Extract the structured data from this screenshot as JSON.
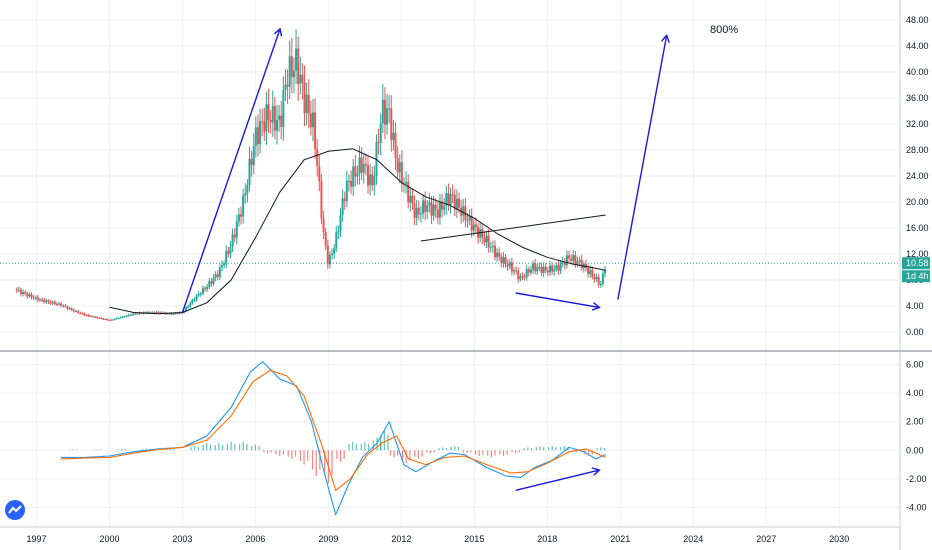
{
  "chart_data": [
    {
      "type": "candlestick",
      "yticks": [
        "48.00",
        "44.00",
        "40.00",
        "36.00",
        "32.00",
        "28.00",
        "24.00",
        "20.00",
        "16.00",
        "12.00",
        "8.00",
        "4.00",
        "0.00"
      ],
      "ylim": [
        0,
        48
      ],
      "xticks": [
        "1997",
        "2000",
        "2003",
        "2006",
        "2009",
        "2012",
        "2015",
        "2018",
        "2021",
        "2024",
        "2027",
        "2030"
      ],
      "xlim": [
        1995.5,
        2032.5
      ],
      "last_price_label": "10.58",
      "last_price": 10.58,
      "countdown_label": "1d 4h",
      "up_color": "#26a69a",
      "down_color": "#ef5350",
      "annotation_text": "800%",
      "closes": [
        {
          "t": 1996.1,
          "v": 6.6
        },
        {
          "t": 1996.5,
          "v": 5.9
        },
        {
          "t": 1997.0,
          "v": 5.1
        },
        {
          "t": 1997.5,
          "v": 4.6
        },
        {
          "t": 1998.0,
          "v": 4.2
        },
        {
          "t": 1998.5,
          "v": 3.3
        },
        {
          "t": 1999.0,
          "v": 2.6
        },
        {
          "t": 1999.5,
          "v": 2.2
        },
        {
          "t": 2000.0,
          "v": 1.8
        },
        {
          "t": 2000.5,
          "v": 2.3
        },
        {
          "t": 2001.0,
          "v": 2.8
        },
        {
          "t": 2001.5,
          "v": 3.0
        },
        {
          "t": 2002.0,
          "v": 3.0
        },
        {
          "t": 2002.5,
          "v": 2.8
        },
        {
          "t": 2003.0,
          "v": 3.0
        },
        {
          "t": 2003.5,
          "v": 5.2
        },
        {
          "t": 2004.0,
          "v": 7.0
        },
        {
          "t": 2004.5,
          "v": 9.2
        },
        {
          "t": 2005.0,
          "v": 13.5
        },
        {
          "t": 2005.5,
          "v": 20.0
        },
        {
          "t": 2006.0,
          "v": 30.0
        },
        {
          "t": 2006.5,
          "v": 33.5
        },
        {
          "t": 2007.0,
          "v": 32.0
        },
        {
          "t": 2007.3,
          "v": 39.5
        },
        {
          "t": 2007.7,
          "v": 41.5
        },
        {
          "t": 2008.0,
          "v": 36.0
        },
        {
          "t": 2008.4,
          "v": 31.5
        },
        {
          "t": 2008.8,
          "v": 15.0
        },
        {
          "t": 2009.0,
          "v": 10.5
        },
        {
          "t": 2009.3,
          "v": 14.0
        },
        {
          "t": 2009.7,
          "v": 22.0
        },
        {
          "t": 2010.0,
          "v": 24.0
        },
        {
          "t": 2010.4,
          "v": 26.0
        },
        {
          "t": 2010.8,
          "v": 22.5
        },
        {
          "t": 2011.2,
          "v": 34.0
        },
        {
          "t": 2011.5,
          "v": 33.5
        },
        {
          "t": 2011.8,
          "v": 26.0
        },
        {
          "t": 2012.2,
          "v": 22.0
        },
        {
          "t": 2012.6,
          "v": 18.0
        },
        {
          "t": 2013.0,
          "v": 19.5
        },
        {
          "t": 2013.5,
          "v": 18.5
        },
        {
          "t": 2014.0,
          "v": 21.0
        },
        {
          "t": 2014.5,
          "v": 18.5
        },
        {
          "t": 2015.0,
          "v": 16.0
        },
        {
          "t": 2015.5,
          "v": 14.0
        },
        {
          "t": 2016.0,
          "v": 11.5
        },
        {
          "t": 2016.5,
          "v": 10.0
        },
        {
          "t": 2016.9,
          "v": 8.2
        },
        {
          "t": 2017.4,
          "v": 10.0
        },
        {
          "t": 2017.9,
          "v": 9.5
        },
        {
          "t": 2018.4,
          "v": 9.8
        },
        {
          "t": 2018.9,
          "v": 11.5
        },
        {
          "t": 2019.4,
          "v": 10.5
        },
        {
          "t": 2019.9,
          "v": 8.5
        },
        {
          "t": 2020.2,
          "v": 7.3
        },
        {
          "t": 2020.4,
          "v": 10.58
        }
      ],
      "moving_average": [
        {
          "t": 2000.0,
          "v": 3.8
        },
        {
          "t": 2001.0,
          "v": 3.0
        },
        {
          "t": 2002.0,
          "v": 2.8
        },
        {
          "t": 2003.0,
          "v": 3.0
        },
        {
          "t": 2004.0,
          "v": 4.5
        },
        {
          "t": 2005.0,
          "v": 8.0
        },
        {
          "t": 2006.0,
          "v": 14.5
        },
        {
          "t": 2007.0,
          "v": 21.5
        },
        {
          "t": 2008.0,
          "v": 26.5
        },
        {
          "t": 2009.0,
          "v": 27.8
        },
        {
          "t": 2010.0,
          "v": 28.2
        },
        {
          "t": 2011.0,
          "v": 26.5
        },
        {
          "t": 2012.0,
          "v": 23.0
        },
        {
          "t": 2013.0,
          "v": 20.8
        },
        {
          "t": 2014.0,
          "v": 19.5
        },
        {
          "t": 2015.0,
          "v": 17.5
        },
        {
          "t": 2016.0,
          "v": 15.0
        },
        {
          "t": 2017.0,
          "v": 13.0
        },
        {
          "t": 2018.0,
          "v": 11.5
        },
        {
          "t": 2019.0,
          "v": 10.5
        },
        {
          "t": 2020.4,
          "v": 9.5
        }
      ],
      "trendline": {
        "from": {
          "t": 2012.8,
          "v": 14.0
        },
        "to": {
          "t": 2020.4,
          "v": 18.0
        }
      },
      "arrows": [
        {
          "from": {
            "t": 2003.0,
            "v": 3.0
          },
          "to": {
            "t": 2007.0,
            "v": 46.5
          }
        },
        {
          "from": {
            "t": 2016.7,
            "v": 6.0
          },
          "to": {
            "t": 2020.1,
            "v": 3.8
          }
        },
        {
          "from": {
            "t": 2020.9,
            "v": 5.0
          },
          "to": {
            "t": 2022.9,
            "v": 45.5
          }
        }
      ]
    },
    {
      "type": "macd",
      "yticks": [
        "6.00",
        "4.00",
        "2.00",
        "0.00",
        "-2.00",
        "-4.00"
      ],
      "ylim": [
        -5.3,
        6.6
      ],
      "macd_color": "#2196f3",
      "signal_color": "#ff6d00",
      "hist_up_color": "#26a69a",
      "hist_down_color": "#ef5350",
      "macd_line": [
        {
          "t": 1998.0,
          "v": -0.5
        },
        {
          "t": 1999.0,
          "v": -0.5
        },
        {
          "t": 2000.0,
          "v": -0.4
        },
        {
          "t": 2001.0,
          "v": -0.1
        },
        {
          "t": 2002.0,
          "v": 0.1
        },
        {
          "t": 2003.0,
          "v": 0.2
        },
        {
          "t": 2004.0,
          "v": 1.0
        },
        {
          "t": 2005.0,
          "v": 3.0
        },
        {
          "t": 2005.8,
          "v": 5.5
        },
        {
          "t": 2006.3,
          "v": 6.2
        },
        {
          "t": 2007.0,
          "v": 5.0
        },
        {
          "t": 2007.7,
          "v": 4.5
        },
        {
          "t": 2008.3,
          "v": 2.0
        },
        {
          "t": 2008.9,
          "v": -2.0
        },
        {
          "t": 2009.3,
          "v": -4.5
        },
        {
          "t": 2009.8,
          "v": -2.5
        },
        {
          "t": 2010.4,
          "v": -0.5
        },
        {
          "t": 2011.0,
          "v": 0.5
        },
        {
          "t": 2011.5,
          "v": 2.0
        },
        {
          "t": 2012.1,
          "v": -1.0
        },
        {
          "t": 2012.6,
          "v": -1.5
        },
        {
          "t": 2013.3,
          "v": -0.8
        },
        {
          "t": 2014.0,
          "v": -0.2
        },
        {
          "t": 2014.6,
          "v": -0.3
        },
        {
          "t": 2015.5,
          "v": -1.2
        },
        {
          "t": 2016.3,
          "v": -1.8
        },
        {
          "t": 2016.9,
          "v": -1.9
        },
        {
          "t": 2017.5,
          "v": -1.2
        },
        {
          "t": 2018.2,
          "v": -0.7
        },
        {
          "t": 2018.9,
          "v": 0.2
        },
        {
          "t": 2019.5,
          "v": -0.1
        },
        {
          "t": 2020.0,
          "v": -0.6
        },
        {
          "t": 2020.4,
          "v": -0.3
        }
      ],
      "signal_line": [
        {
          "t": 1998.0,
          "v": -0.6
        },
        {
          "t": 1999.0,
          "v": -0.55
        },
        {
          "t": 2000.0,
          "v": -0.5
        },
        {
          "t": 2001.0,
          "v": -0.2
        },
        {
          "t": 2002.0,
          "v": 0.05
        },
        {
          "t": 2003.0,
          "v": 0.2
        },
        {
          "t": 2004.0,
          "v": 0.7
        },
        {
          "t": 2005.0,
          "v": 2.4
        },
        {
          "t": 2005.9,
          "v": 4.8
        },
        {
          "t": 2006.6,
          "v": 5.6
        },
        {
          "t": 2007.3,
          "v": 5.2
        },
        {
          "t": 2008.0,
          "v": 3.8
        },
        {
          "t": 2008.7,
          "v": 0.5
        },
        {
          "t": 2009.3,
          "v": -2.8
        },
        {
          "t": 2009.9,
          "v": -2.0
        },
        {
          "t": 2010.6,
          "v": -0.3
        },
        {
          "t": 2011.2,
          "v": 0.5
        },
        {
          "t": 2011.8,
          "v": 1.0
        },
        {
          "t": 2012.3,
          "v": -0.6
        },
        {
          "t": 2013.0,
          "v": -1.0
        },
        {
          "t": 2013.8,
          "v": -0.5
        },
        {
          "t": 2014.6,
          "v": -0.4
        },
        {
          "t": 2015.5,
          "v": -1.0
        },
        {
          "t": 2016.5,
          "v": -1.6
        },
        {
          "t": 2017.2,
          "v": -1.5
        },
        {
          "t": 2018.0,
          "v": -0.9
        },
        {
          "t": 2018.9,
          "v": -0.1
        },
        {
          "t": 2019.6,
          "v": 0.1
        },
        {
          "t": 2020.4,
          "v": -0.5
        }
      ],
      "histogram": [
        {
          "t": 1998.5,
          "v": 0.05
        },
        {
          "t": 1999.5,
          "v": 0.05
        },
        {
          "t": 2000.5,
          "v": 0.1
        },
        {
          "t": 2001.5,
          "v": 0.12
        },
        {
          "t": 2002.5,
          "v": 0.15
        },
        {
          "t": 2003.5,
          "v": 0.3
        },
        {
          "t": 2004.0,
          "v": 0.5
        },
        {
          "t": 2004.5,
          "v": 0.5
        },
        {
          "t": 2005.0,
          "v": 0.6
        },
        {
          "t": 2005.5,
          "v": 0.6
        },
        {
          "t": 2006.0,
          "v": 0.4
        },
        {
          "t": 2006.5,
          "v": -0.2
        },
        {
          "t": 2007.0,
          "v": -0.4
        },
        {
          "t": 2007.5,
          "v": -0.6
        },
        {
          "t": 2008.0,
          "v": -1.0
        },
        {
          "t": 2008.5,
          "v": -1.8
        },
        {
          "t": 2009.0,
          "v": -2.3
        },
        {
          "t": 2009.5,
          "v": -0.8
        },
        {
          "t": 2010.0,
          "v": 0.6
        },
        {
          "t": 2010.5,
          "v": 0.6
        },
        {
          "t": 2011.0,
          "v": 0.9
        },
        {
          "t": 2011.3,
          "v": 1.4
        },
        {
          "t": 2011.7,
          "v": -0.5
        },
        {
          "t": 2012.2,
          "v": -0.9
        },
        {
          "t": 2012.7,
          "v": -0.6
        },
        {
          "t": 2013.2,
          "v": -0.2
        },
        {
          "t": 2013.7,
          "v": 0.2
        },
        {
          "t": 2014.2,
          "v": 0.3
        },
        {
          "t": 2014.7,
          "v": -0.2
        },
        {
          "t": 2015.2,
          "v": -0.4
        },
        {
          "t": 2015.7,
          "v": -0.5
        },
        {
          "t": 2016.2,
          "v": -0.4
        },
        {
          "t": 2016.7,
          "v": -0.2
        },
        {
          "t": 2017.2,
          "v": 0.2
        },
        {
          "t": 2017.7,
          "v": 0.3
        },
        {
          "t": 2018.2,
          "v": 0.3
        },
        {
          "t": 2018.7,
          "v": 0.3
        },
        {
          "t": 2019.2,
          "v": -0.1
        },
        {
          "t": 2019.7,
          "v": -0.4
        },
        {
          "t": 2020.2,
          "v": 0.2
        }
      ],
      "arrows": [
        {
          "from": {
            "t": 2016.7,
            "v": -2.8
          },
          "to": {
            "t": 2020.1,
            "v": -1.4
          }
        }
      ]
    }
  ]
}
